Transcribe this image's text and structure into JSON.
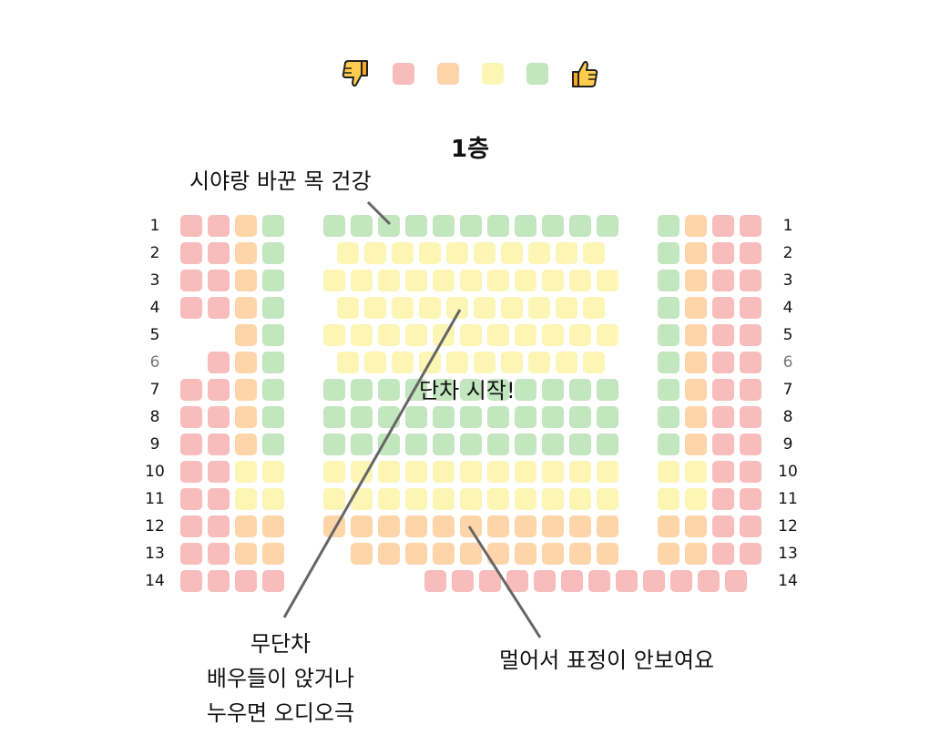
{
  "colors": {
    "red": "#f8bcbc",
    "orange": "#fdd5a8",
    "yellow": "#fcf5b4",
    "green": "#c2e6bd"
  },
  "legend": {
    "left_icon": "thumbs-down-icon",
    "right_icon": "thumbs-up-icon",
    "scale": [
      "red",
      "orange",
      "yellow",
      "green"
    ]
  },
  "floor_title": "1층",
  "rows": [
    {
      "label": "1",
      "dim": false,
      "left": [
        "r",
        "r",
        "o",
        "g"
      ],
      "center": [
        "g",
        "g",
        "g",
        "g",
        "g",
        "g",
        "g",
        "g",
        "g",
        "g",
        "g"
      ],
      "center_offset": 0,
      "right": [
        "g",
        "o",
        "r",
        "r"
      ]
    },
    {
      "label": "2",
      "dim": false,
      "left": [
        "r",
        "r",
        "o",
        "g"
      ],
      "center": [
        "y",
        "y",
        "y",
        "y",
        "y",
        "y",
        "y",
        "y",
        "y",
        "y"
      ],
      "center_offset": 0.5,
      "right": [
        "g",
        "o",
        "r",
        "r"
      ]
    },
    {
      "label": "3",
      "dim": false,
      "left": [
        "r",
        "r",
        "o",
        "g"
      ],
      "center": [
        "y",
        "y",
        "y",
        "y",
        "y",
        "y",
        "y",
        "y",
        "y",
        "y",
        "y"
      ],
      "center_offset": 0,
      "right": [
        "g",
        "o",
        "r",
        "r"
      ]
    },
    {
      "label": "4",
      "dim": false,
      "left": [
        "r",
        "r",
        "o",
        "g"
      ],
      "center": [
        "y",
        "y",
        "y",
        "y",
        "y",
        "y",
        "y",
        "y",
        "y",
        "y"
      ],
      "center_offset": 0.5,
      "right": [
        "g",
        "o",
        "r",
        "r"
      ]
    },
    {
      "label": "5",
      "dim": false,
      "left": [
        null,
        null,
        "o",
        "g"
      ],
      "center": [
        "y",
        "y",
        "y",
        "y",
        "y",
        "y",
        "y",
        "y",
        "y",
        "y",
        "y"
      ],
      "center_offset": 0,
      "right": [
        "g",
        "o",
        "r",
        "r"
      ]
    },
    {
      "label": "6",
      "dim": true,
      "left": [
        null,
        "r",
        "o",
        "g"
      ],
      "center": [
        "y",
        "y",
        "y",
        "y",
        "y",
        "y",
        "y",
        "y",
        "y",
        "y"
      ],
      "center_offset": 0.5,
      "right": [
        "g",
        "o",
        "r",
        "r"
      ]
    },
    {
      "label": "7",
      "dim": false,
      "left": [
        "r",
        "r",
        "o",
        "g"
      ],
      "center": [
        "g",
        "g",
        "g",
        "g",
        "g",
        "g",
        "g",
        "g",
        "g",
        "g",
        "g"
      ],
      "center_offset": 0,
      "right": [
        "g",
        "o",
        "r",
        "r"
      ]
    },
    {
      "label": "8",
      "dim": false,
      "left": [
        "r",
        "r",
        "o",
        "g"
      ],
      "center": [
        "g",
        "g",
        "g",
        "g",
        "g",
        "g",
        "g",
        "g",
        "g",
        "g",
        "g"
      ],
      "center_offset": 0,
      "right": [
        "g",
        "o",
        "r",
        "r"
      ]
    },
    {
      "label": "9",
      "dim": false,
      "left": [
        "r",
        "r",
        "o",
        "g"
      ],
      "center": [
        "g",
        "g",
        "g",
        "g",
        "g",
        "g",
        "g",
        "g",
        "g",
        "g",
        "g"
      ],
      "center_offset": 0,
      "right": [
        "g",
        "o",
        "r",
        "r"
      ]
    },
    {
      "label": "10",
      "dim": false,
      "left": [
        "r",
        "r",
        "y",
        "y"
      ],
      "center": [
        "y",
        "y",
        "y",
        "y",
        "y",
        "y",
        "y",
        "y",
        "y",
        "y",
        "y"
      ],
      "center_offset": 0,
      "right": [
        "y",
        "y",
        "r",
        "r"
      ]
    },
    {
      "label": "11",
      "dim": false,
      "left": [
        "r",
        "r",
        "y",
        "y"
      ],
      "center": [
        "y",
        "y",
        "y",
        "y",
        "y",
        "y",
        "y",
        "y",
        "y",
        "y",
        "y"
      ],
      "center_offset": 0,
      "right": [
        "y",
        "y",
        "r",
        "r"
      ]
    },
    {
      "label": "12",
      "dim": false,
      "left": [
        "r",
        "r",
        "o",
        "o"
      ],
      "center": [
        "o",
        "o",
        "o",
        "o",
        "o",
        "o",
        "o",
        "o",
        "o",
        "o",
        "o"
      ],
      "center_offset": 0,
      "right": [
        "o",
        "o",
        "r",
        "r"
      ]
    },
    {
      "label": "13",
      "dim": false,
      "left": [
        "r",
        "r",
        "o",
        "o"
      ],
      "center": [
        null,
        "o",
        "o",
        "o",
        "o",
        "o",
        "o",
        "o",
        "o",
        "o",
        "o"
      ],
      "center_offset": 0,
      "right": [
        "o",
        "o",
        "r",
        "r"
      ]
    },
    {
      "label": "14",
      "dim": false,
      "left": [
        "r",
        "r",
        "r",
        "r"
      ],
      "center": [
        "r",
        "r",
        "r",
        "r",
        "r",
        "r",
        "r",
        "r",
        "r",
        "r",
        "r",
        "r"
      ],
      "center_offset": 3.7,
      "right": null
    }
  ],
  "annotations": {
    "neck": "시야랑 바꾼 목 건강",
    "step_start": "단차 시작!",
    "no_step": [
      "무단차",
      "배우들이 앉거나",
      "누우면 오디오극"
    ],
    "far": "멀어서 표정이 안보여요"
  }
}
